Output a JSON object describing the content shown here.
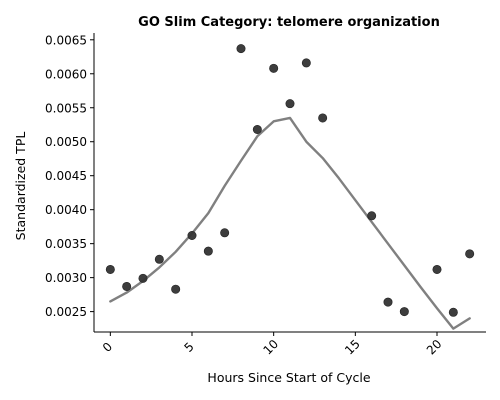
{
  "chart_data": {
    "type": "scatter",
    "title": "GO Slim Category: telomere organization",
    "xlabel": "Hours Since Start of Cycle",
    "ylabel": "Standardized TPL",
    "xlim": [
      -1,
      23
    ],
    "ylim": [
      0.0022,
      0.0066
    ],
    "xticks": [
      0,
      5,
      10,
      15,
      20
    ],
    "yticks": [
      0.0025,
      0.003,
      0.0035,
      0.004,
      0.0045,
      0.005,
      0.0055,
      0.006,
      0.0065
    ],
    "ytick_labels": [
      "0.0025",
      "0.0030",
      "0.0035",
      "0.0040",
      "0.0045",
      "0.0050",
      "0.0055",
      "0.0060",
      "0.0065"
    ],
    "grid": false,
    "points": {
      "x": [
        0,
        1,
        2,
        3,
        4,
        5,
        6,
        7,
        8,
        9,
        10,
        11,
        12,
        13,
        16,
        17,
        18,
        20,
        21,
        22
      ],
      "y": [
        0.00312,
        0.00287,
        0.00299,
        0.00327,
        0.00283,
        0.00362,
        0.00339,
        0.00366,
        0.00637,
        0.00518,
        0.00608,
        0.00556,
        0.00616,
        0.00535,
        0.00391,
        0.00264,
        0.0025,
        0.00312,
        0.00249,
        0.00335
      ],
      "color": "#333333"
    },
    "trend_line": {
      "x": [
        0,
        1,
        2,
        3,
        4,
        5,
        6,
        7,
        8,
        9,
        10,
        11,
        12,
        13,
        14,
        15,
        16,
        17,
        18,
        19,
        20,
        21,
        22
      ],
      "y": [
        0.00265,
        0.00278,
        0.00295,
        0.00315,
        0.00338,
        0.00365,
        0.00395,
        0.00435,
        0.00472,
        0.00508,
        0.0053,
        0.00535,
        0.005,
        0.00476,
        0.00446,
        0.00414,
        0.00382,
        0.0035,
        0.00318,
        0.00286,
        0.00255,
        0.00225,
        0.0024
      ],
      "color": "#808080"
    }
  }
}
